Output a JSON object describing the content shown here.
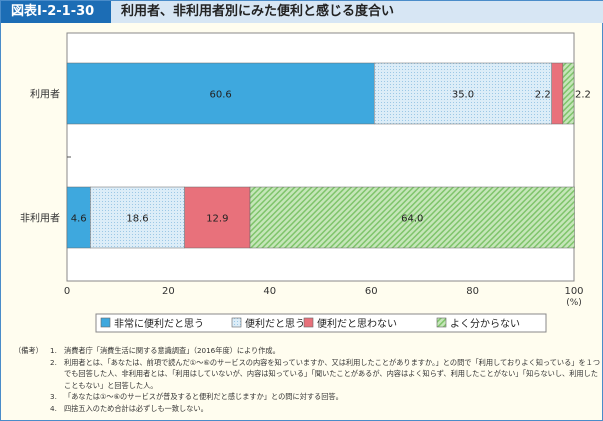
{
  "header": {
    "figure_no": "図表Ⅰ-2-1-30",
    "title": "利用者、非利用者別にみた便利と感じる度合い"
  },
  "colors": {
    "cat0": "#3ea8de",
    "cat1": "#dcedf8",
    "cat2": "#e8717b",
    "cat3": "#a9d79b"
  },
  "chart_data": {
    "type": "bar",
    "orientation": "horizontal",
    "stacked": true,
    "categories": [
      "利用者",
      "非利用者"
    ],
    "series": [
      {
        "name": "非常に便利だと思う",
        "values": [
          60.6,
          4.6
        ]
      },
      {
        "name": "便利だと思う",
        "values": [
          35.0,
          18.6
        ]
      },
      {
        "name": "便利だと思わない",
        "values": [
          2.2,
          12.9
        ]
      },
      {
        "name": "よく分からない",
        "values": [
          2.2,
          64.0
        ]
      }
    ],
    "xlim": [
      0,
      100
    ],
    "xticks": [
      0,
      20,
      40,
      60,
      80,
      100
    ],
    "xunit": "(%)",
    "legend": "bottom"
  },
  "notes": {
    "label": "（備考）",
    "items": [
      {
        "num": "1.",
        "text": "消費者庁「消費生活に関する意識調査」（2016年度）により作成。"
      },
      {
        "num": "2.",
        "text": "利用者とは、「あなたは、前項で読んだ①～⑥のサービスの内容を知っていますか、又は利用したことがありますか。」との問で「利用しておりよく知っている」を１つでも回答した人、非利用者とは、「利用はしていないが、内容は知っている」「聞いたことがあるが、内容はよく知らず、利用したことがない」「知らないし、利用したこともない」と回答した人。"
      },
      {
        "num": "3.",
        "text": "「あなたは①～⑥のサービスが普及すると便利だと感じますか」との問に対する回答。"
      },
      {
        "num": "4.",
        "text": "四捨五入のため合計は必ずしも一致しない。"
      }
    ]
  }
}
